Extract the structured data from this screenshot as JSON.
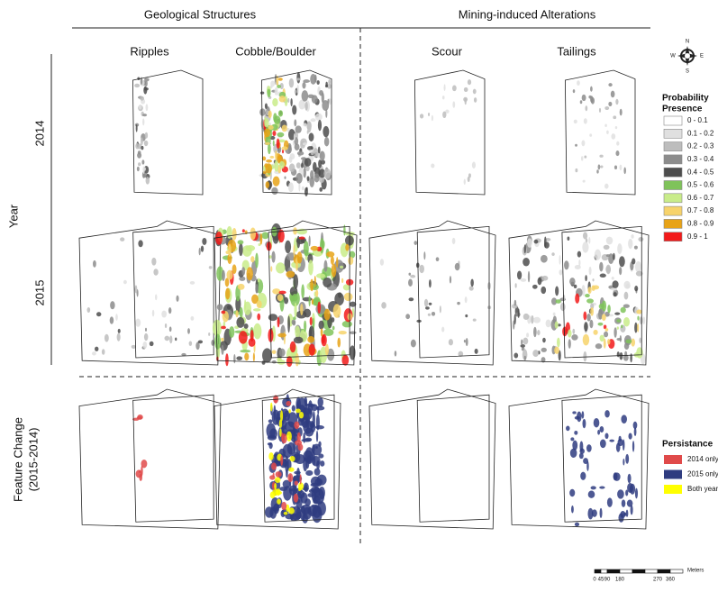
{
  "header": {
    "groups": [
      "Geological Structures",
      "Mining-induced Alterations"
    ],
    "columns": [
      "Ripples",
      "Cobble/Boulder",
      "Scour",
      "Tailings"
    ]
  },
  "rows": {
    "axis_label": "Year",
    "years": [
      "2014",
      "2015"
    ],
    "change_label": [
      "Feature Change",
      "(2015-2014)"
    ]
  },
  "legend_probability": {
    "title": [
      "Probability",
      "Presence"
    ],
    "items": [
      {
        "label": "0 - 0.1",
        "color": "#ffffff"
      },
      {
        "label": "0.1 - 0.2",
        "color": "#e0e0e0"
      },
      {
        "label": "0.2 - 0.3",
        "color": "#bdbdbd"
      },
      {
        "label": "0.3 - 0.4",
        "color": "#8c8c8c"
      },
      {
        "label": "0.4 - 0.5",
        "color": "#4d4d4d"
      },
      {
        "label": "0.5 - 0.6",
        "color": "#7fc35a"
      },
      {
        "label": "0.6 - 0.7",
        "color": "#c9ec8a"
      },
      {
        "label": "0.7 - 0.8",
        "color": "#f7d36b"
      },
      {
        "label": "0.8 - 0.9",
        "color": "#e8a317"
      },
      {
        "label": "0.9 - 1",
        "color": "#f21a1a"
      }
    ]
  },
  "legend_persistence": {
    "title": "Persistance",
    "items": [
      {
        "label": "2014 only",
        "color": "#e04a4a"
      },
      {
        "label": "2015 only",
        "color": "#2f3c80"
      },
      {
        "label": "Both year",
        "color": "#ffff00"
      }
    ]
  },
  "scale_bar": {
    "unit": "Meters",
    "ticks": [
      "0",
      "45",
      "90",
      "180",
      "270",
      "360"
    ]
  },
  "compass": [
    "N",
    "E",
    "S",
    "W"
  ]
}
